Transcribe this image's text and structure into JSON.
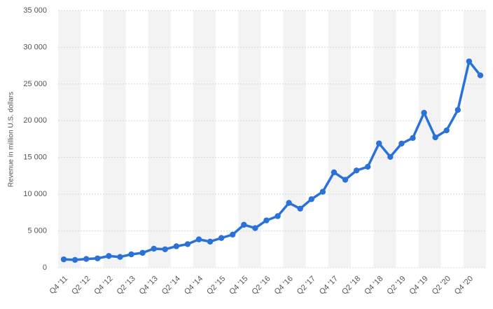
{
  "chart_data": {
    "type": "line",
    "y_label": "Revenue in million U.S. dollars",
    "categories": [
      "Q4 '11",
      null,
      "Q2 '12",
      null,
      "Q4 '12",
      null,
      "Q2 '13",
      null,
      "Q4 '13",
      null,
      "Q2 '14",
      null,
      "Q4 '14",
      null,
      "Q2 '15",
      null,
      "Q4 '15",
      null,
      "Q2 '16",
      null,
      "Q4 '16",
      null,
      "Q2 '17",
      null,
      "Q4 '17",
      null,
      "Q2 '18",
      null,
      "Q4 '18",
      null,
      "Q2 '19",
      null,
      "Q4 '19",
      null,
      "Q2 '20",
      null,
      "Q4 '20",
      null
    ],
    "series": [
      {
        "color": "#2b72d8",
        "values": [
          1131,
          1058,
          1184,
          1262,
          1585,
          1458,
          1813,
          2016,
          2585,
          2502,
          2910,
          3203,
          3851,
          3543,
          4042,
          4501,
          5841,
          5382,
          6436,
          7011,
          8809,
          8032,
          9321,
          10328,
          12972,
          11966,
          13231,
          13727,
          16914,
          15077,
          16886,
          17652,
          21082,
          17737,
          18687,
          21470,
          28072,
          26171
        ]
      }
    ],
    "ylim": [
      0,
      35000
    ],
    "yticks": [
      0,
      {
        "value": 5000,
        "label": "5 000"
      },
      {
        "value": 10000,
        "label": "10 000"
      },
      {
        "value": 15000,
        "label": "15 000"
      },
      {
        "value": 20000,
        "label": "20 000"
      },
      {
        "value": 25000,
        "label": "25 000"
      },
      {
        "value": 30000,
        "label": "30 000"
      },
      {
        "value": 35000,
        "label": "35 000"
      }
    ],
    "grid": true
  }
}
